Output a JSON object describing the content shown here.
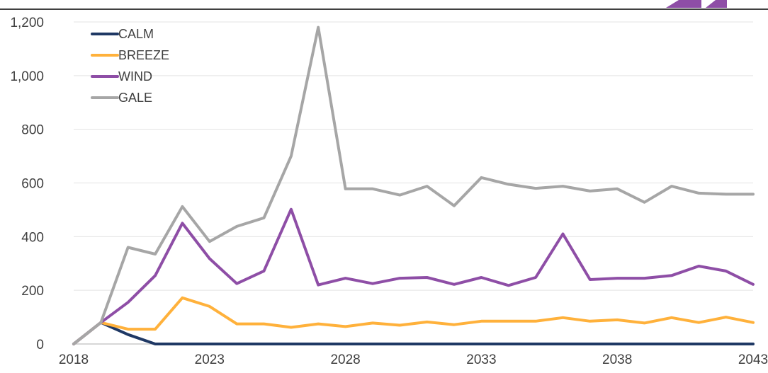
{
  "chart_data": {
    "type": "line",
    "x": [
      2018,
      2019,
      2020,
      2021,
      2022,
      2023,
      2024,
      2025,
      2026,
      2027,
      2028,
      2029,
      2030,
      2031,
      2032,
      2033,
      2034,
      2035,
      2036,
      2037,
      2038,
      2039,
      2040,
      2041,
      2042,
      2043
    ],
    "x_ticks": [
      2018,
      2023,
      2028,
      2033,
      2038,
      2043
    ],
    "x_tick_labels": [
      "2018",
      "2023",
      "2028",
      "2033",
      "2038",
      "2043"
    ],
    "y_ticks": [
      0,
      200,
      400,
      600,
      800,
      1000,
      1200
    ],
    "y_tick_labels": [
      "0",
      "200",
      "400",
      "600",
      "800",
      "1,000",
      "1,200"
    ],
    "ylim": [
      0,
      1200
    ],
    "xlim": [
      2018,
      2043
    ],
    "grid": "horizontal",
    "legend": "top-left",
    "series": [
      {
        "name": "CALM",
        "color": "#1f3864",
        "values": [
          0,
          80,
          35,
          0,
          0,
          0,
          0,
          0,
          0,
          0,
          0,
          0,
          0,
          0,
          0,
          0,
          0,
          0,
          0,
          0,
          0,
          0,
          0,
          0,
          0,
          0
        ]
      },
      {
        "name": "BREEZE",
        "color": "#ffb13b",
        "values": [
          0,
          80,
          55,
          55,
          172,
          140,
          75,
          75,
          62,
          75,
          65,
          78,
          70,
          82,
          72,
          85,
          85,
          85,
          98,
          85,
          90,
          78,
          98,
          80,
          100,
          80
        ]
      },
      {
        "name": "WIND",
        "color": "#8e4ea6",
        "values": [
          0,
          80,
          155,
          255,
          450,
          318,
          225,
          272,
          502,
          220,
          245,
          225,
          245,
          248,
          222,
          248,
          218,
          248,
          410,
          240,
          245,
          245,
          255,
          290,
          272,
          222
        ]
      },
      {
        "name": "GALE",
        "color": "#a6a6a6",
        "values": [
          0,
          80,
          360,
          335,
          512,
          382,
          438,
          470,
          700,
          1180,
          578,
          578,
          555,
          588,
          515,
          620,
          595,
          580,
          588,
          570,
          578,
          528,
          588,
          562,
          558,
          558
        ]
      }
    ]
  },
  "logo": {
    "color": "#8e4ea6"
  }
}
